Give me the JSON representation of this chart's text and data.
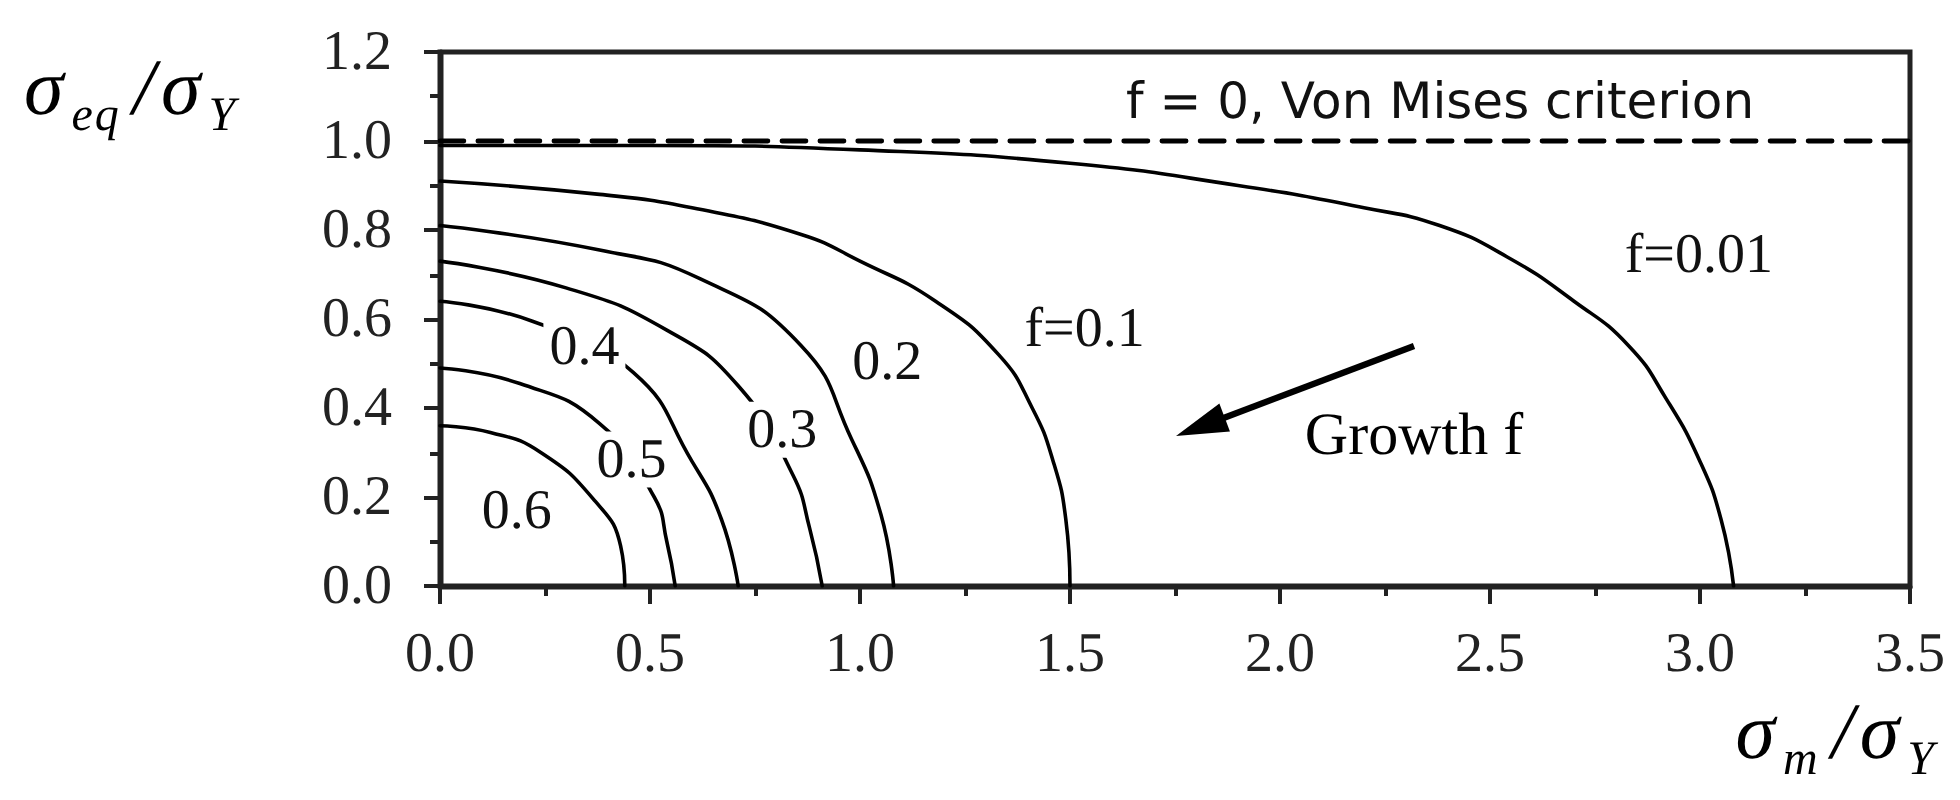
{
  "chart_data": {
    "type": "line",
    "xlabel": "σ$_{m}$/σ$_{Y}$",
    "ylabel": "σ$_{eq}$/σ$_{Y}$",
    "annotations": [
      "Growth f"
    ],
    "xlim": [
      0,
      3.5
    ],
    "xticks": [
      {
        "value": 0,
        "label": "0.0"
      },
      {
        "value": 0.25,
        "label": null
      },
      {
        "value": 0.5,
        "label": "0.5"
      },
      {
        "value": 0.75,
        "label": null
      },
      {
        "value": 1,
        "label": "1.0"
      },
      {
        "value": 1.25,
        "label": null
      },
      {
        "value": 1.5,
        "label": "1.5"
      },
      {
        "value": 1.75,
        "label": null
      },
      {
        "value": 2,
        "label": "2.0"
      },
      {
        "value": 2.25,
        "label": null
      },
      {
        "value": 2.5,
        "label": "2.5"
      },
      {
        "value": 2.75,
        "label": null
      },
      {
        "value": 3,
        "label": "3.0"
      },
      {
        "value": 3.25,
        "label": null
      },
      {
        "value": 3.5,
        "label": "3.5"
      }
    ],
    "ylim": [
      0,
      1.2
    ],
    "yticks": [
      {
        "value": 0,
        "label": "0.0"
      },
      {
        "value": 0.1,
        "label": null
      },
      {
        "value": 0.2,
        "label": "0.2"
      },
      {
        "value": 0.3,
        "label": null
      },
      {
        "value": 0.4,
        "label": "0.4"
      },
      {
        "value": 0.5,
        "label": null
      },
      {
        "value": 0.6,
        "label": "0.6"
      },
      {
        "value": 0.7,
        "label": null
      },
      {
        "value": 0.8,
        "label": "0.8"
      },
      {
        "value": 0.9,
        "label": null
      },
      {
        "value": 1,
        "label": "1.0"
      },
      {
        "value": 1.1,
        "label": null
      },
      {
        "value": 1.2,
        "label": "1.2"
      }
    ],
    "series": [
      {
        "name": "f = 0, Von Mises criterion",
        "color": "#000000",
        "line_style": "dashed",
        "x": [
          0,
          3.5
        ],
        "values": [
          1,
          1
        ]
      },
      {
        "name": "f=0.01",
        "color": "#000000",
        "x": [
          0,
          0.5,
          1,
          1.5,
          1.9,
          2.2,
          2.38,
          2.54,
          2.7,
          2.83,
          2.92,
          3,
          3.05,
          3.08
        ],
        "values": [
          0.99,
          0.99,
          0.98,
          0.95,
          0.9,
          0.85,
          0.81,
          0.74,
          0.64,
          0.54,
          0.42,
          0.28,
          0.15,
          0
        ]
      },
      {
        "name": "f=0.1",
        "color": "#000000",
        "x": [
          0,
          0.38,
          0.6,
          0.86,
          1,
          1.18,
          1.33,
          1.41,
          1.46,
          1.49,
          1.5
        ],
        "values": [
          0.91,
          0.88,
          0.85,
          0.79,
          0.73,
          0.64,
          0.52,
          0.4,
          0.28,
          0.15,
          0
        ]
      },
      {
        "name": "0.2",
        "color": "#000000",
        "x": [
          0,
          0.38,
          0.62,
          0.86,
          0.98,
          1.05,
          1.08
        ],
        "values": [
          0.81,
          0.755,
          0.69,
          0.54,
          0.33,
          0.16,
          0
        ]
      },
      {
        "name": "0.3",
        "color": "#000000",
        "x": [
          0,
          0.3,
          0.54,
          0.71,
          0.84,
          0.88,
          0.91
        ],
        "values": [
          0.73,
          0.67,
          0.575,
          0.45,
          0.25,
          0.13,
          0
        ]
      },
      {
        "name": "0.4",
        "color": "#000000",
        "x": [
          0,
          0.22,
          0.46,
          0.6,
          0.67,
          0.71
        ],
        "values": [
          0.64,
          0.595,
          0.48,
          0.28,
          0.15,
          0
        ]
      },
      {
        "name": "0.5",
        "color": "#000000",
        "x": [
          0,
          0.19,
          0.38,
          0.51,
          0.54,
          0.56
        ],
        "values": [
          0.49,
          0.455,
          0.365,
          0.2,
          0.1,
          0
        ]
      },
      {
        "name": "0.6",
        "color": "#000000",
        "x": [
          0,
          0.12,
          0.24,
          0.37,
          0.43,
          0.44
        ],
        "values": [
          0.36,
          0.345,
          0.3,
          0.19,
          0.09,
          0
        ]
      }
    ]
  }
}
